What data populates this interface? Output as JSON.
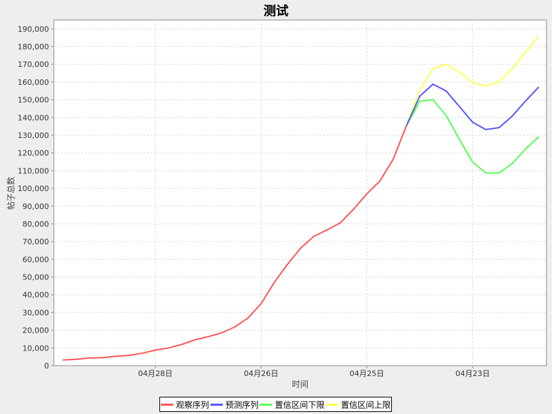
{
  "chart_data": {
    "type": "line",
    "title": "测试",
    "xlabel": "时间",
    "ylabel": "帖子总数",
    "ylim": [
      0,
      195000
    ],
    "y_ticks": [
      0,
      10000,
      20000,
      30000,
      40000,
      50000,
      60000,
      70000,
      80000,
      90000,
      100000,
      110000,
      120000,
      130000,
      140000,
      150000,
      160000,
      170000,
      180000,
      190000
    ],
    "y_tick_labels": [
      "0",
      "10,000",
      "20,000",
      "30,000",
      "40,000",
      "50,000",
      "60,000",
      "70,000",
      "80,000",
      "90,000",
      "100,000",
      "110,000",
      "120,000",
      "130,000",
      "140,000",
      "150,000",
      "160,000",
      "170,000",
      "180,000",
      "190,000"
    ],
    "x_tick_labels": [
      {
        "label": "04月28日",
        "index": 7
      },
      {
        "label": "04月26日",
        "index": 15
      },
      {
        "label": "04月25日",
        "index": 23
      },
      {
        "label": "04月23日",
        "index": 31
      }
    ],
    "grid": true,
    "legend_position": "bottom",
    "series": [
      {
        "name": "观察序列",
        "color": "#ff5555",
        "start": 0,
        "values": [
          3200,
          3600,
          4400,
          4500,
          5300,
          5800,
          7000,
          8800,
          10000,
          12000,
          14600,
          16400,
          18500,
          21800,
          26800,
          35000,
          47000,
          57200,
          66400,
          73000,
          76600,
          80700,
          88300,
          97000,
          104300,
          116600,
          135500
        ]
      },
      {
        "name": "预测序列",
        "color": "#5555ff",
        "start": 26,
        "values": [
          135500,
          152000,
          158800,
          155000,
          146200,
          137300,
          133200,
          134300,
          140800,
          149300,
          157200
        ]
      },
      {
        "name": "置信区间下限",
        "color": "#55ff55",
        "start": 26,
        "values": [
          135500,
          149100,
          150100,
          141100,
          127700,
          114800,
          108800,
          108700,
          114100,
          122200,
          129200
        ]
      },
      {
        "name": "置信区间上限",
        "color": "#ffff55",
        "start": 26,
        "values": [
          135500,
          155300,
          167600,
          170000,
          165600,
          159800,
          157700,
          160200,
          167700,
          176800,
          185900
        ]
      }
    ]
  }
}
